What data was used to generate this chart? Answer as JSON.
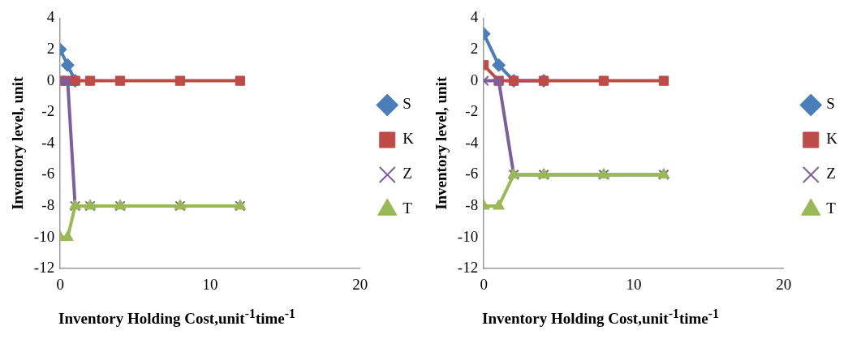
{
  "chart_data": [
    {
      "type": "line",
      "xlabel": "Inventory Holding Cost,unit$^{-1}$time$^{-1}$",
      "ylabel": "Inventory level, unit",
      "xlim": [
        0,
        20
      ],
      "xticks": [
        0,
        10,
        20
      ],
      "ylim": [
        -12,
        4
      ],
      "yticks": [
        -12,
        -10,
        -8,
        -6,
        -4,
        -2,
        0,
        2,
        4
      ],
      "grid": false,
      "legend": "right",
      "line_style": "solid",
      "x": [
        0,
        0.5,
        1,
        2,
        4,
        8,
        12
      ],
      "series": [
        {
          "name": "S",
          "color": "#4a7ebb",
          "marker": "diamond",
          "values": [
            2,
            1,
            0,
            null,
            null,
            null,
            null
          ]
        },
        {
          "name": "K",
          "color": "#be4b48",
          "marker": "square",
          "values": [
            0,
            0,
            0,
            0,
            0,
            0,
            0
          ]
        },
        {
          "name": "Z",
          "color": "#7d5fa0",
          "marker": "cross",
          "values": [
            0,
            0,
            -8,
            -8,
            -8,
            -8,
            -8
          ]
        },
        {
          "name": "T",
          "color": "#98b954",
          "marker": "triangle",
          "values": [
            -10,
            -10,
            -8,
            -8,
            -8,
            -8,
            -8
          ]
        }
      ]
    },
    {
      "type": "line",
      "xlabel": "Inventory Holding Cost,unit$^{-1}$time$^{-1}$",
      "ylabel": "Inventory level, unit",
      "xlim": [
        0,
        20
      ],
      "xticks": [
        0,
        10,
        20
      ],
      "ylim": [
        -12,
        4
      ],
      "yticks": [
        -12,
        -10,
        -8,
        -6,
        -4,
        -2,
        0,
        2,
        4
      ],
      "grid": false,
      "legend": "right",
      "line_style": "solid",
      "x": [
        0,
        1,
        2,
        4,
        8,
        12
      ],
      "series": [
        {
          "name": "S",
          "color": "#4a7ebb",
          "marker": "diamond",
          "values": [
            3,
            1,
            0,
            0,
            null,
            null
          ]
        },
        {
          "name": "K",
          "color": "#be4b48",
          "marker": "square",
          "values": [
            1,
            0,
            0,
            0,
            0,
            0
          ]
        },
        {
          "name": "Z",
          "color": "#7d5fa0",
          "marker": "cross",
          "values": [
            0,
            0,
            -6,
            -6,
            -6,
            -6
          ]
        },
        {
          "name": "T",
          "color": "#98b954",
          "marker": "triangle",
          "values": [
            -8,
            -8,
            -6,
            -6,
            -6,
            -6
          ]
        }
      ]
    }
  ]
}
